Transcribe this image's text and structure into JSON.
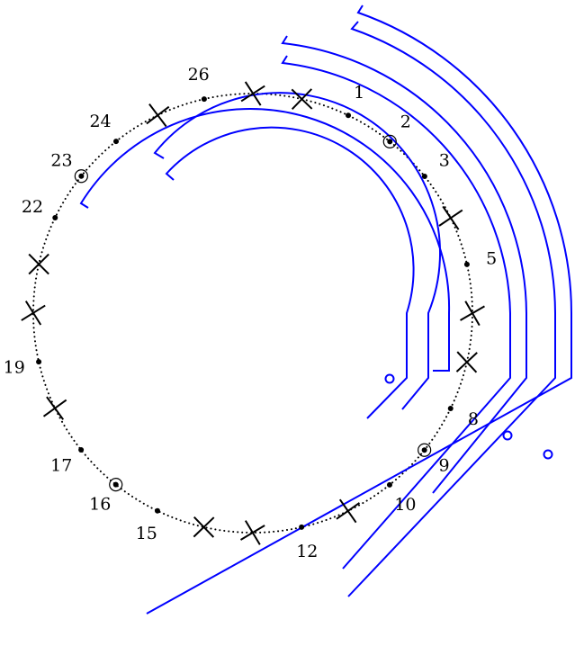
{
  "diagram": {
    "colors": {
      "ring": "#000000",
      "arc": "#0000ff",
      "background": "#ffffff"
    },
    "ring": {
      "style": "dotted",
      "positions": 28
    },
    "labels": [
      "1",
      "2",
      "3",
      "5",
      "8",
      "9",
      "10",
      "12",
      "15",
      "16",
      "17",
      "19",
      "22",
      "23",
      "24",
      "26"
    ],
    "markers": [
      {
        "label": "1",
        "type": "dot"
      },
      {
        "label": "2",
        "type": "circled-dot"
      },
      {
        "label": "3",
        "type": "dot"
      },
      {
        "label": "",
        "type": "cross"
      },
      {
        "label": "5",
        "type": "dot"
      },
      {
        "label": "",
        "type": "cross"
      },
      {
        "label": "",
        "type": "cross"
      },
      {
        "label": "8",
        "type": "dot"
      },
      {
        "label": "9",
        "type": "circled-dot"
      },
      {
        "label": "10",
        "type": "dot"
      },
      {
        "label": "",
        "type": "cross"
      },
      {
        "label": "12",
        "type": "dot"
      },
      {
        "label": "",
        "type": "cross"
      },
      {
        "label": "",
        "type": "cross"
      },
      {
        "label": "15",
        "type": "dot"
      },
      {
        "label": "16",
        "type": "circled-dot"
      },
      {
        "label": "17",
        "type": "dot"
      },
      {
        "label": "",
        "type": "cross"
      },
      {
        "label": "19",
        "type": "dot"
      },
      {
        "label": "",
        "type": "cross"
      },
      {
        "label": "",
        "type": "cross"
      },
      {
        "label": "22",
        "type": "dot"
      },
      {
        "label": "23",
        "type": "circled-dot"
      },
      {
        "label": "24",
        "type": "dot"
      },
      {
        "label": "",
        "type": "cross"
      },
      {
        "label": "26",
        "type": "dot"
      },
      {
        "label": "",
        "type": "cross"
      },
      {
        "label": "",
        "type": "cross"
      }
    ],
    "arc_count": 7
  }
}
